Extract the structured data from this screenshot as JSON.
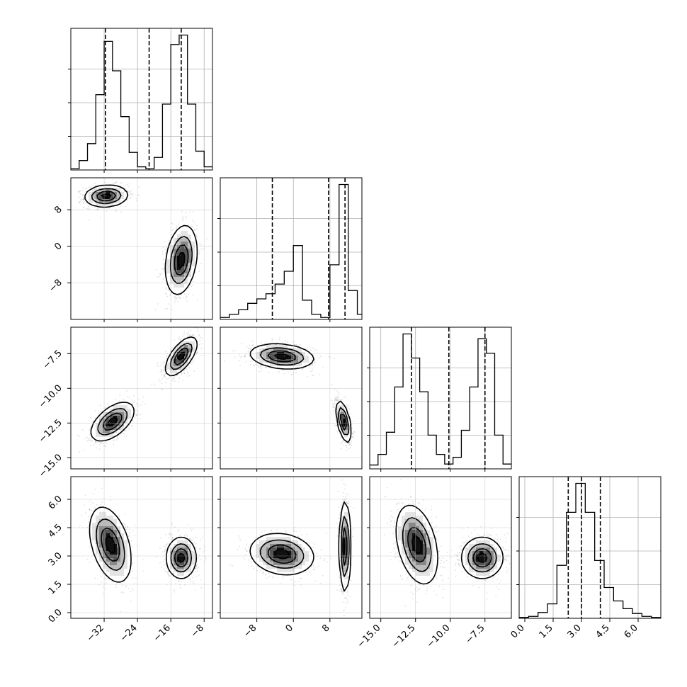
{
  "chart_data": {
    "type": "corner",
    "title": "",
    "parameters": [
      {
        "label": "",
        "range": [
          -40,
          -6
        ],
        "ticks": [
          -32,
          -24,
          -16,
          -8
        ],
        "tick_labels": [
          "−32",
          "−24",
          "−16",
          "−8"
        ],
        "quantiles": [
          -31.7,
          -21.2,
          -13.5
        ]
      },
      {
        "label": "",
        "range": [
          -16,
          15
        ],
        "ticks": [
          -8,
          0,
          8
        ],
        "tick_labels": [
          "−8",
          "0",
          "8"
        ],
        "quantiles": [
          -4.6,
          7.7,
          11.3
        ]
      },
      {
        "label": "",
        "range": [
          -15.8,
          -5.6
        ],
        "ticks": [
          -15.0,
          -12.5,
          -10.0,
          -7.5
        ],
        "tick_labels": [
          "−15.0",
          "−12.5",
          "−10.0",
          "−7.5"
        ],
        "quantiles": [
          -12.8,
          -10.1,
          -7.5
        ]
      },
      {
        "label": "",
        "range": [
          -0.3,
          7.2
        ],
        "ticks": [
          0.0,
          1.5,
          3.0,
          4.5,
          6.0
        ],
        "tick_labels": [
          "0.0",
          "1.5",
          "3.0",
          "4.5",
          "6.0"
        ],
        "quantiles": [
          2.3,
          3.0,
          4.0
        ]
      }
    ],
    "histograms": [
      {
        "bin_edges": [
          -40,
          -38,
          -36,
          -34,
          -32,
          -30,
          -28,
          -26,
          -24,
          -22,
          -20,
          -18,
          -16,
          -14,
          -12,
          -10,
          -8,
          -6
        ],
        "counts": [
          0.2,
          1.5,
          4.2,
          12,
          20.5,
          15.8,
          8.5,
          2.8,
          0.5,
          0.2,
          2,
          10.5,
          20,
          21.5,
          10.5,
          3,
          0.5
        ]
      },
      {
        "bin_edges": [
          -16,
          -14,
          -12,
          -10,
          -8,
          -6,
          -4,
          -2,
          0,
          2,
          4,
          6,
          8,
          10,
          12,
          14,
          15
        ],
        "counts": [
          0.3,
          0.8,
          1.5,
          2.5,
          3.2,
          4,
          5.5,
          7.5,
          11.5,
          3,
          0.8,
          0.3,
          8.5,
          21,
          4.5,
          0.8
        ]
      },
      {
        "bin_edges": [
          -15.8,
          -15.2,
          -14.6,
          -14.0,
          -13.4,
          -12.8,
          -12.2,
          -11.6,
          -11.0,
          -10.4,
          -9.8,
          -9.2,
          -8.6,
          -8.0,
          -7.4,
          -6.8,
          -6.2,
          -5.6
        ],
        "counts": [
          0.4,
          1.5,
          3.8,
          8.5,
          14,
          11.5,
          8,
          3.5,
          1.5,
          0.5,
          1.2,
          4,
          8.5,
          13.5,
          12,
          3.5,
          0.5
        ]
      },
      {
        "bin_edges": [
          -0.3,
          0.2,
          0.7,
          1.2,
          1.7,
          2.2,
          2.7,
          3.2,
          3.7,
          4.2,
          4.7,
          5.2,
          5.7,
          6.2,
          6.7,
          7.2
        ],
        "counts": [
          0.1,
          0.2,
          0.6,
          1.5,
          5.5,
          11,
          14,
          11,
          6,
          3.2,
          1.8,
          1,
          0.5,
          0.2,
          0.1
        ]
      }
    ],
    "density_modes": [
      {
        "row": 1,
        "col": 0,
        "modes": [
          {
            "mean": [
              -31.5,
              11
            ],
            "sd": [
              2.6,
              1.2
            ],
            "rho": 0.1,
            "weight": 1
          },
          {
            "mean": [
              -13.5,
              -3
            ],
            "sd": [
              1.9,
              3.8
            ],
            "rho": 0.25,
            "weight": 1
          }
        ]
      },
      {
        "row": 2,
        "col": 0,
        "modes": [
          {
            "mean": [
              -30,
              -12.4
            ],
            "sd": [
              2.6,
              0.7
            ],
            "rho": 0.55,
            "weight": 1
          },
          {
            "mean": [
              -13.5,
              -7.7
            ],
            "sd": [
              1.9,
              0.7
            ],
            "rho": 0.65,
            "weight": 1
          }
        ]
      },
      {
        "row": 2,
        "col": 1,
        "modes": [
          {
            "mean": [
              -2.5,
              -7.7
            ],
            "sd": [
              3.5,
              0.45
            ],
            "rho": -0.2,
            "weight": 1
          },
          {
            "mean": [
              11,
              -12.4
            ],
            "sd": [
              0.8,
              0.75
            ],
            "rho": -0.55,
            "weight": 1
          }
        ]
      },
      {
        "row": 3,
        "col": 0,
        "modes": [
          {
            "mean": [
              -30.5,
              3.6
            ],
            "sd": [
              2.5,
              1
            ],
            "rho": -0.4,
            "weight": 1
          },
          {
            "mean": [
              -13.5,
              2.9
            ],
            "sd": [
              1.8,
              0.55
            ],
            "rho": 0,
            "weight": 1
          }
        ]
      },
      {
        "row": 3,
        "col": 1,
        "modes": [
          {
            "mean": [
              -2.5,
              3.1
            ],
            "sd": [
              3.5,
              0.55
            ],
            "rho": -0.15,
            "weight": 1
          },
          {
            "mean": [
              11.3,
              3.5
            ],
            "sd": [
              0.6,
              1.2
            ],
            "rho": 0,
            "weight": 1
          }
        ]
      },
      {
        "row": 3,
        "col": 2,
        "modes": [
          {
            "mean": [
              -12.4,
              3.6
            ],
            "sd": [
              0.75,
              1.05
            ],
            "rho": -0.35,
            "weight": 1
          },
          {
            "mean": [
              -7.7,
              2.9
            ],
            "sd": [
              0.75,
              0.55
            ],
            "rho": 0,
            "weight": 1
          }
        ]
      }
    ],
    "grid": true,
    "legend": "none"
  }
}
